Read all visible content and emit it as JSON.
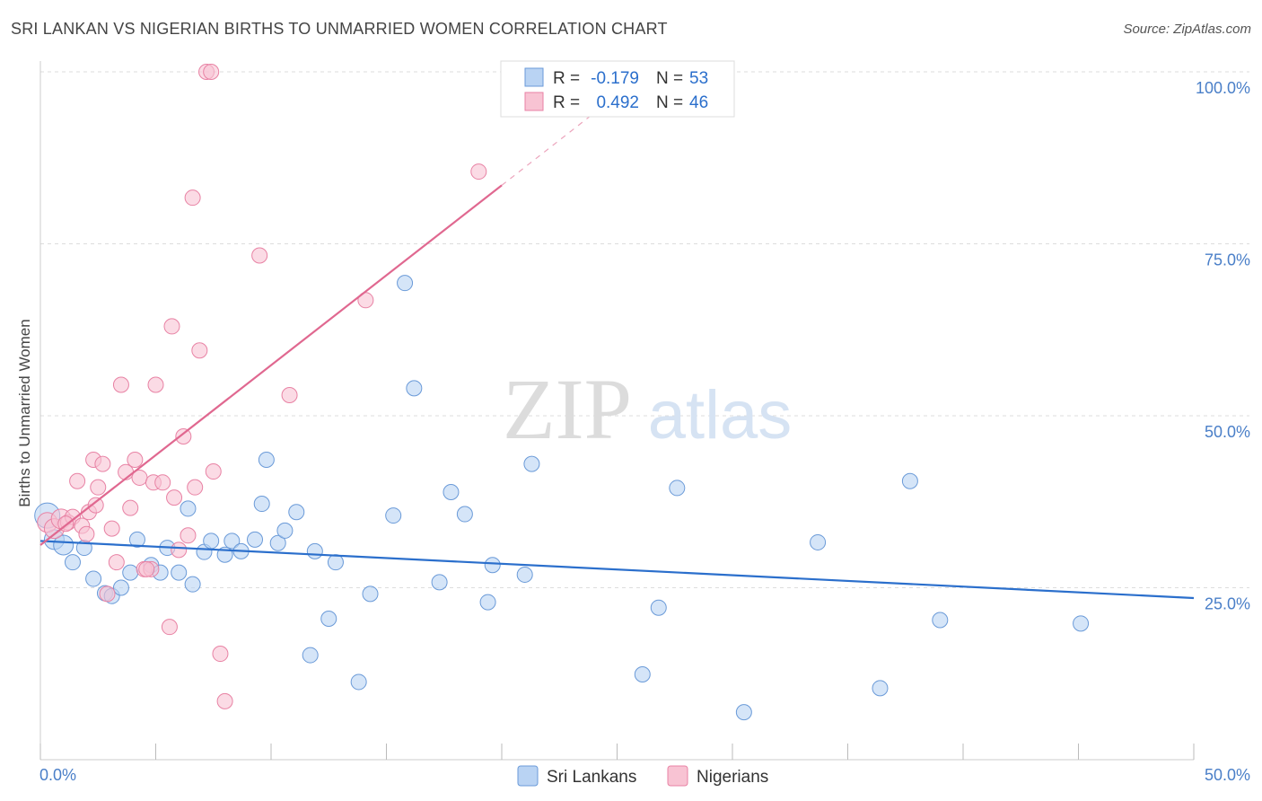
{
  "title": "SRI LANKAN VS NIGERIAN BIRTHS TO UNMARRIED WOMEN CORRELATION CHART",
  "source": "Source: ZipAtlas.com",
  "watermark": {
    "zip": "ZIP",
    "atlas": "atlas"
  },
  "legend_stats": [
    {
      "r_label": "R =",
      "r_value": "-0.179",
      "n_label": "N =",
      "n_value": "53",
      "color": "#b9d3f3",
      "stroke": "#6a9ad8"
    },
    {
      "r_label": "R =",
      "r_value": "0.492",
      "n_label": "N =",
      "n_value": "46",
      "color": "#f8c3d3",
      "stroke": "#e882a4"
    }
  ],
  "chart_data": {
    "type": "scatter",
    "title": "SRI LANKAN VS NIGERIAN BIRTHS TO UNMARRIED WOMEN CORRELATION CHART",
    "xlabel": "",
    "ylabel": "Births to Unmarried Women",
    "xlim": [
      0,
      50
    ],
    "ylim": [
      0,
      100
    ],
    "x_tick_labels": [
      "0.0%",
      "50.0%"
    ],
    "y_tick_labels": [
      "25.0%",
      "50.0%",
      "75.0%",
      "100.0%"
    ],
    "y_tick_values": [
      25,
      50,
      75,
      100
    ],
    "grid": true,
    "legend_position": "bottom-center",
    "series": [
      {
        "name": "Sri Lankans",
        "color": "#b9d3f3",
        "stroke": "#6a9ad8",
        "trend_color": "#2b6fcc",
        "trend": {
          "x": [
            0,
            50
          ],
          "y": [
            31.8,
            23.5
          ]
        },
        "points": [
          [
            0.3,
            35.5
          ],
          [
            0.6,
            32
          ],
          [
            1.0,
            31.2
          ],
          [
            1.4,
            28.7
          ],
          [
            1.9,
            30.8
          ],
          [
            2.3,
            26.3
          ],
          [
            2.8,
            24.2
          ],
          [
            3.1,
            23.8
          ],
          [
            3.5,
            25
          ],
          [
            3.9,
            27.2
          ],
          [
            4.2,
            32
          ],
          [
            4.8,
            28.3
          ],
          [
            5.2,
            27.2
          ],
          [
            5.5,
            30.8
          ],
          [
            6.0,
            27.2
          ],
          [
            6.4,
            36.5
          ],
          [
            6.6,
            25.5
          ],
          [
            7.1,
            30.2
          ],
          [
            7.4,
            31.8
          ],
          [
            8.0,
            29.8
          ],
          [
            8.3,
            31.8
          ],
          [
            8.7,
            30.3
          ],
          [
            9.3,
            32
          ],
          [
            9.6,
            37.2
          ],
          [
            9.8,
            43.6
          ],
          [
            10.3,
            31.5
          ],
          [
            10.6,
            33.3
          ],
          [
            11.1,
            36
          ],
          [
            11.9,
            30.3
          ],
          [
            12.5,
            20.5
          ],
          [
            11.7,
            15.2
          ],
          [
            12.8,
            28.7
          ],
          [
            13.8,
            11.3
          ],
          [
            14.3,
            24.1
          ],
          [
            15.3,
            35.5
          ],
          [
            15.8,
            69.3
          ],
          [
            16.2,
            54
          ],
          [
            17.3,
            25.8
          ],
          [
            17.8,
            38.9
          ],
          [
            18.4,
            35.7
          ],
          [
            19.4,
            22.9
          ],
          [
            19.6,
            28.3
          ],
          [
            21.0,
            26.9
          ],
          [
            21.3,
            43
          ],
          [
            26.1,
            12.4
          ],
          [
            26.8,
            22.1
          ],
          [
            27.6,
            39.5
          ],
          [
            30.5,
            6.9
          ],
          [
            33.7,
            31.6
          ],
          [
            36.4,
            10.4
          ],
          [
            37.7,
            40.5
          ],
          [
            39.0,
            20.3
          ],
          [
            45.1,
            19.8
          ]
        ]
      },
      {
        "name": "Nigerians",
        "color": "#f8c3d3",
        "stroke": "#e882a4",
        "trend_color": "#e06890",
        "trend": {
          "x": [
            0,
            20
          ],
          "y": [
            31.2,
            83.5
          ]
        },
        "trend_dashed": {
          "x": [
            20,
            24
          ],
          "y": [
            83.5,
            94
          ]
        },
        "points": [
          [
            0.3,
            34.5
          ],
          [
            0.6,
            33.6
          ],
          [
            0.9,
            35
          ],
          [
            1.2,
            34.5
          ],
          [
            1.4,
            35.3
          ],
          [
            1.6,
            40.5
          ],
          [
            1.8,
            34
          ],
          [
            2.0,
            32.8
          ],
          [
            2.1,
            36
          ],
          [
            2.3,
            43.6
          ],
          [
            2.5,
            39.6
          ],
          [
            2.7,
            43
          ],
          [
            2.9,
            24.1
          ],
          [
            3.1,
            33.6
          ],
          [
            3.3,
            28.7
          ],
          [
            3.5,
            54.5
          ],
          [
            3.7,
            41.8
          ],
          [
            3.9,
            36.6
          ],
          [
            4.1,
            43.6
          ],
          [
            4.3,
            41
          ],
          [
            4.5,
            27.7
          ],
          [
            4.8,
            27.7
          ],
          [
            4.9,
            40.3
          ],
          [
            5.0,
            54.5
          ],
          [
            5.3,
            40.3
          ],
          [
            5.6,
            19.3
          ],
          [
            5.7,
            63
          ],
          [
            5.8,
            38.1
          ],
          [
            6.0,
            30.5
          ],
          [
            6.2,
            47
          ],
          [
            6.4,
            32.6
          ],
          [
            6.6,
            81.7
          ],
          [
            6.7,
            39.6
          ],
          [
            6.9,
            59.5
          ],
          [
            7.2,
            100
          ],
          [
            7.4,
            100
          ],
          [
            7.5,
            41.9
          ],
          [
            7.8,
            15.4
          ],
          [
            8.0,
            8.5
          ],
          [
            9.5,
            73.3
          ],
          [
            10.8,
            53
          ],
          [
            14.1,
            66.8
          ],
          [
            19.0,
            85.5
          ],
          [
            4.6,
            27.7
          ],
          [
            2.4,
            37
          ],
          [
            1.1,
            34.3
          ]
        ]
      }
    ]
  }
}
